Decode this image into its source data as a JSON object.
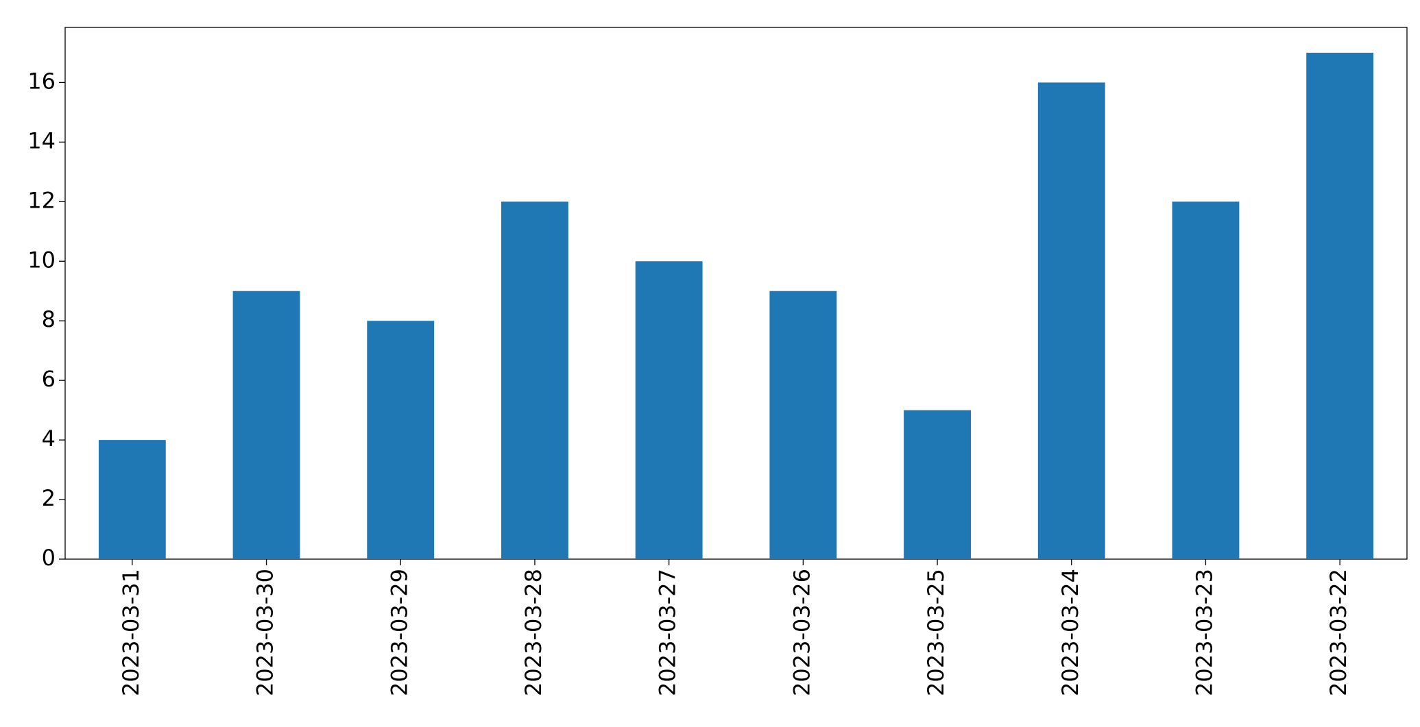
{
  "chart_data": {
    "type": "bar",
    "categories": [
      "2023-03-31",
      "2023-03-30",
      "2023-03-29",
      "2023-03-28",
      "2023-03-27",
      "2023-03-26",
      "2023-03-25",
      "2023-03-24",
      "2023-03-23",
      "2023-03-22"
    ],
    "values": [
      4,
      9,
      8,
      12,
      10,
      9,
      5,
      16,
      12,
      17
    ],
    "color": "#1f77b4",
    "ylim": [
      0,
      17.85
    ],
    "yticks": [
      0,
      2,
      4,
      6,
      8,
      10,
      12,
      14,
      16
    ],
    "grid": false
  }
}
